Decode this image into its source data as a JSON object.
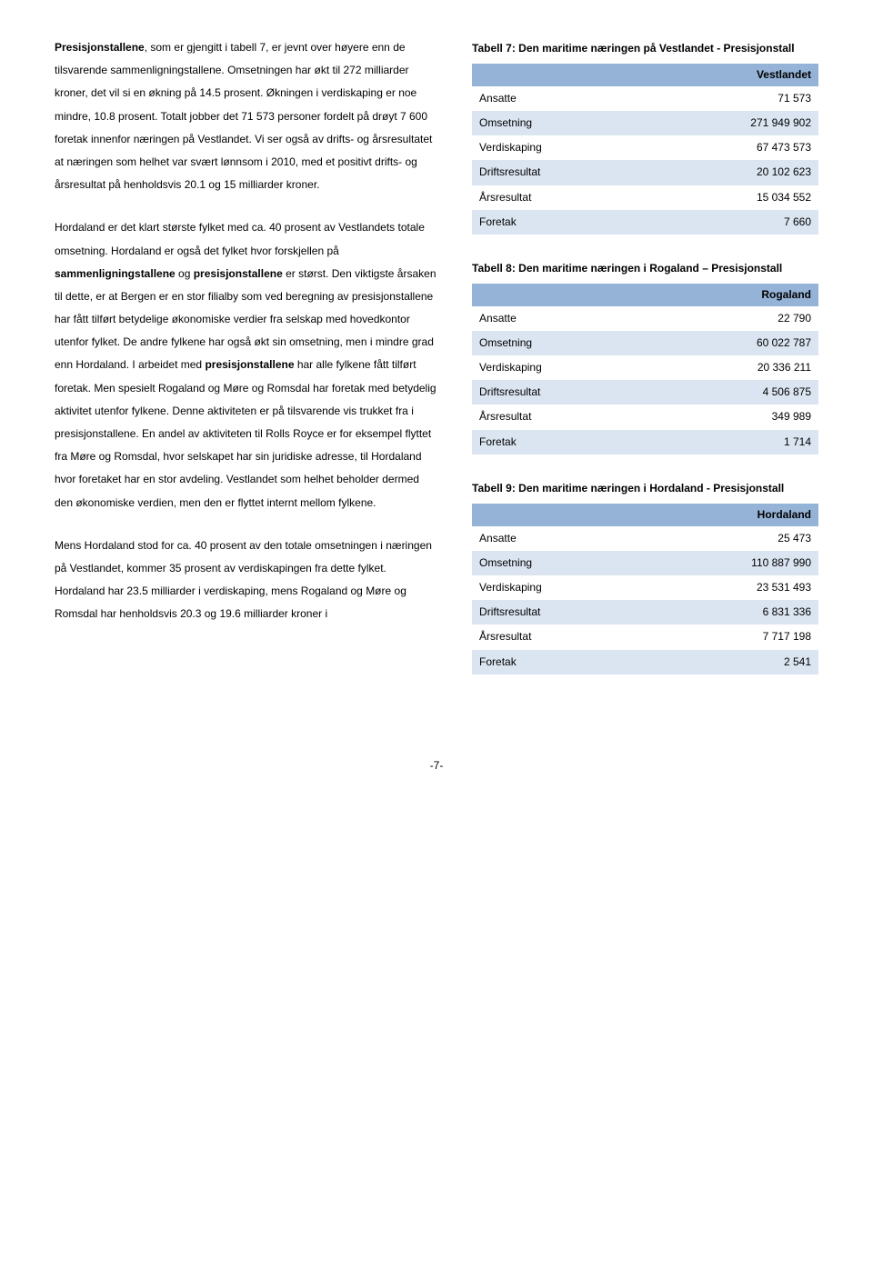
{
  "left": {
    "p1_lead": "Presisjonstallene",
    "p1_rest": ", som er gjengitt i tabell 7, er jevnt over høyere enn de tilsvarende sammenligningstallene. Omsetningen har økt til 272 milliarder kroner, det vil si en økning på 14.5 prosent. Økningen i verdiskaping er noe mindre, 10.8 prosent. Totalt jobber det 71 573 personer fordelt på drøyt 7 600 foretak innenfor næringen på Vestlandet. Vi ser også av drifts- og årsresultatet at næringen som helhet var svært lønnsom i 2010, med et positivt drifts- og årsresultat på henholdsvis 20.1 og 15 milliarder kroner.",
    "p2_a": "Hordaland er det klart største fylket med ca. 40 prosent av Vestlandets totale omsetning. Hordaland er også det fylket hvor forskjellen på ",
    "p2_b1": "sammenligningstallene",
    "p2_mid1": " og ",
    "p2_b2": "presisjonstallene",
    "p2_c": " er størst. Den viktigste årsaken til dette, er at Bergen er en stor filialby som ved beregning av presisjonstallene har fått tilført betydelige økonomiske verdier fra selskap med hovedkontor utenfor fylket. De andre fylkene har også økt sin omsetning, men i mindre grad enn Hordaland. I arbeidet med ",
    "p2_b3": "presisjonstallene",
    "p2_d": " har alle fylkene fått tilført foretak. Men spesielt Rogaland og Møre og Romsdal har foretak med betydelig aktivitet utenfor fylkene. Denne aktiviteten er på tilsvarende vis trukket fra i presisjonstallene. En andel av aktiviteten til Rolls Royce er for eksempel flyttet fra Møre og Romsdal, hvor selskapet har sin juridiske adresse, til Hordaland hvor foretaket har en stor avdeling. Vestlandet som helhet beholder dermed den økonomiske verdien, men den er flyttet internt mellom fylkene.",
    "p3": "Mens Hordaland stod for ca. 40 prosent av den totale omsetningen i næringen på Vestlandet, kommer 35 prosent av verdiskapingen fra dette fylket. Hordaland har 23.5 milliarder i verdiskaping, mens Rogaland og Møre og Romsdal har henholdsvis 20.3 og 19.6 milliarder kroner i"
  },
  "tables": {
    "t7": {
      "caption": "Tabell 7: Den maritime næringen på Vestlandet - Presisjonstall",
      "header": "Vestlandet",
      "rows": [
        {
          "label": "Ansatte",
          "value": "71 573"
        },
        {
          "label": "Omsetning",
          "value": "271 949 902"
        },
        {
          "label": "Verdiskaping",
          "value": "67 473 573"
        },
        {
          "label": "Driftsresultat",
          "value": "20 102 623"
        },
        {
          "label": "Årsresultat",
          "value": "15 034 552"
        },
        {
          "label": "Foretak",
          "value": "7 660"
        }
      ]
    },
    "t8": {
      "caption": "Tabell 8: Den maritime næringen i Rogaland – Presisjonstall",
      "header": "Rogaland",
      "rows": [
        {
          "label": "Ansatte",
          "value": "22 790"
        },
        {
          "label": "Omsetning",
          "value": "60 022 787"
        },
        {
          "label": "Verdiskaping",
          "value": "20 336 211"
        },
        {
          "label": "Driftsresultat",
          "value": "4 506 875"
        },
        {
          "label": "Årsresultat",
          "value": "349 989"
        },
        {
          "label": "Foretak",
          "value": "1 714"
        }
      ]
    },
    "t9": {
      "caption": "Tabell 9: Den maritime næringen i Hordaland - Presisjonstall",
      "header": "Hordaland",
      "rows": [
        {
          "label": "Ansatte",
          "value": "25 473"
        },
        {
          "label": "Omsetning",
          "value": "110 887 990"
        },
        {
          "label": "Verdiskaping",
          "value": "23 531 493"
        },
        {
          "label": "Driftsresultat",
          "value": "6 831 336"
        },
        {
          "label": "Årsresultat",
          "value": "7 717 198"
        },
        {
          "label": "Foretak",
          "value": "2 541"
        }
      ]
    }
  },
  "footer": "-7-",
  "style": {
    "header_bg": "#95b3d7",
    "alt_bg": "#dbe5f1"
  }
}
